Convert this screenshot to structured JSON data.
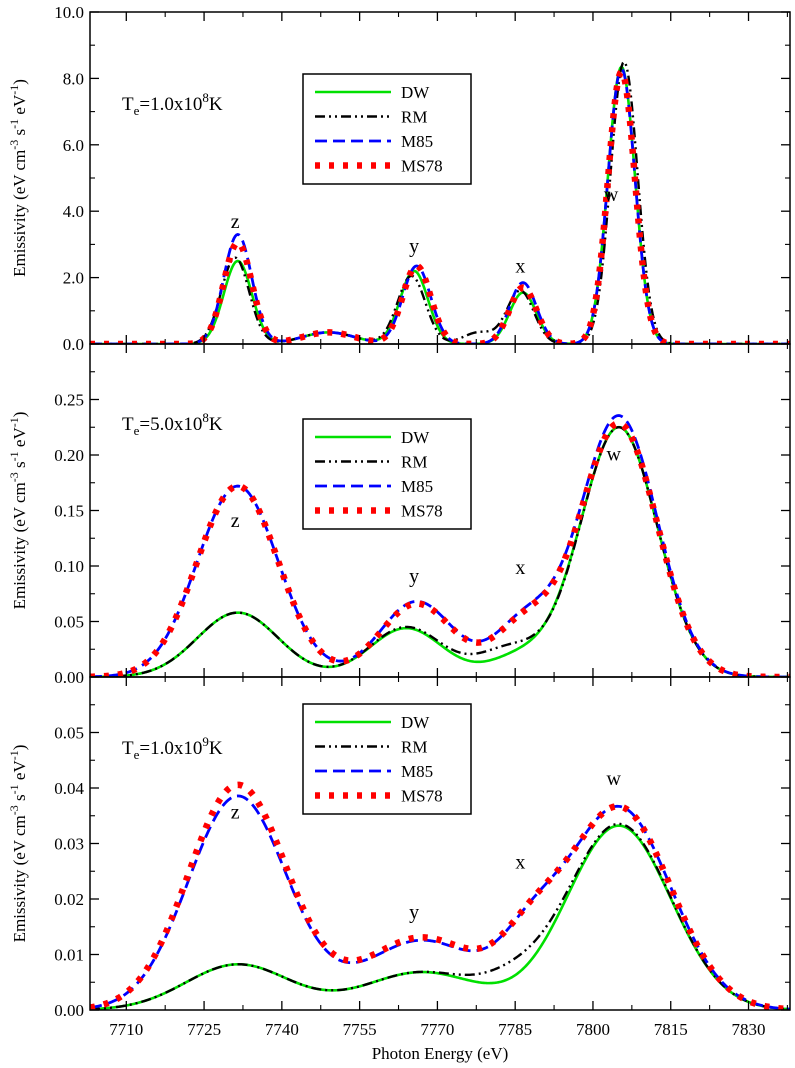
{
  "figure": {
    "xlabel": "Photon Energy (eV)",
    "x_tick_labels": [
      "7710",
      "7725",
      "7740",
      "7755",
      "7770",
      "7785",
      "7800",
      "7815",
      "7830"
    ],
    "ylabel": {
      "main": "Emissivity (eV cm",
      "sup1": "-3",
      "s": " s",
      "sup2": "-1",
      "ev": " eV",
      "sup3": "-1",
      "close": ")"
    },
    "legend_labels": [
      "DW",
      "RM",
      "M85",
      "MS78"
    ],
    "peak_names": [
      "z",
      "y",
      "x",
      "w"
    ]
  },
  "colors": {
    "DW": "#00e000",
    "RM": "#000000",
    "M85": "#0000ff",
    "MS78": "#ff0000"
  },
  "chart_data": [
    {
      "type": "line",
      "panel": "top",
      "temperature": {
        "prefix": "T",
        "sub": "e",
        "value": "=1.0x10",
        "exp": "8",
        "unit": "K"
      },
      "xlim": [
        7703,
        7838
      ],
      "ylim": [
        0,
        10
      ],
      "y_ticks": [
        0,
        2,
        4,
        6,
        8,
        10
      ],
      "y_tick_labels": [
        "0.0",
        "2.0",
        "4.0",
        "6.0",
        "8.0",
        "10.0"
      ],
      "peak_labels": [
        {
          "text": "z",
          "x": 7731,
          "y": 3.5
        },
        {
          "text": "y",
          "x": 7765.5,
          "y": 2.75
        },
        {
          "text": "x",
          "x": 7786,
          "y": 2.15
        },
        {
          "text": "w",
          "x": 7803.5,
          "y": 4.3
        }
      ],
      "series": [
        {
          "name": "DW",
          "peaks": [
            [
              7731.5,
              2.5,
              2.7
            ],
            [
              7765.5,
              2.2,
              2.7
            ],
            [
              7786.5,
              1.55,
              2.6
            ],
            [
              7805.5,
              8.35,
              2.6
            ],
            [
              7749,
              0.35,
              5.0
            ]
          ]
        },
        {
          "name": "RM",
          "peaks": [
            [
              7731.0,
              2.6,
              2.7
            ],
            [
              7765.0,
              2.05,
              2.7
            ],
            [
              7778.0,
              0.35,
              3.0
            ],
            [
              7786.0,
              1.6,
              2.6
            ],
            [
              7806.0,
              8.5,
              2.6
            ],
            [
              7749,
              0.35,
              5.0
            ]
          ]
        },
        {
          "name": "M85",
          "peaks": [
            [
              7731.5,
              3.3,
              2.7
            ],
            [
              7766.0,
              2.35,
              2.7
            ],
            [
              7786.5,
              1.85,
              2.6
            ],
            [
              7805.5,
              8.3,
              2.6
            ],
            [
              7749,
              0.35,
              5.0
            ]
          ]
        },
        {
          "name": "MS78",
          "peaks": [
            [
              7731.5,
              3.05,
              2.7
            ],
            [
              7766.0,
              2.35,
              2.7
            ],
            [
              7786.5,
              1.7,
              2.6
            ],
            [
              7805.5,
              8.2,
              2.6
            ],
            [
              7749,
              0.35,
              5.0
            ]
          ]
        }
      ]
    },
    {
      "type": "line",
      "panel": "middle",
      "temperature": {
        "prefix": "T",
        "sub": "e",
        "value": "=5.0x10",
        "exp": "8",
        "unit": "K"
      },
      "xlim": [
        7703,
        7838
      ],
      "ylim": [
        0,
        0.3
      ],
      "y_ticks": [
        0,
        0.05,
        0.1,
        0.15,
        0.2,
        0.25
      ],
      "y_tick_labels": [
        "0.00",
        "0.05",
        "0.10",
        "0.15",
        "0.20",
        "0.25"
      ],
      "peak_labels": [
        {
          "text": "z",
          "x": 7731,
          "y": 0.135
        },
        {
          "text": "y",
          "x": 7765.5,
          "y": 0.085
        },
        {
          "text": "x",
          "x": 7786,
          "y": 0.093
        },
        {
          "text": "w",
          "x": 7804,
          "y": 0.195
        }
      ],
      "series": [
        {
          "name": "DW",
          "peaks": [
            [
              7731.5,
              0.058,
              7.8
            ],
            [
              7764.0,
              0.044,
              7.0
            ],
            [
              7786.0,
              0.018,
              6.0
            ],
            [
              7805.0,
              0.225,
              7.4
            ]
          ]
        },
        {
          "name": "RM",
          "peaks": [
            [
              7731.5,
              0.058,
              7.8
            ],
            [
              7764.0,
              0.045,
              7.0
            ],
            [
              7784.0,
              0.025,
              6.0
            ],
            [
              7805.0,
              0.225,
              7.4
            ]
          ]
        },
        {
          "name": "M85",
          "peaks": [
            [
              7731.5,
              0.172,
              7.8
            ],
            [
              7766.0,
              0.068,
              7.0
            ],
            [
              7787.0,
              0.05,
              6.0
            ],
            [
              7805.0,
              0.235,
              7.4
            ]
          ]
        },
        {
          "name": "MS78",
          "peaks": [
            [
              7731.5,
              0.172,
              7.8
            ],
            [
              7766.0,
              0.066,
              7.0
            ],
            [
              7787.0,
              0.048,
              6.0
            ],
            [
              7805.0,
              0.228,
              7.4
            ]
          ]
        }
      ]
    },
    {
      "type": "line",
      "panel": "bottom",
      "temperature": {
        "prefix": "T",
        "sub": "e",
        "value": "=1.0x10",
        "exp": "9",
        "unit": "K"
      },
      "xlim": [
        7703,
        7838
      ],
      "ylim": [
        0,
        0.06
      ],
      "y_ticks": [
        0,
        0.01,
        0.02,
        0.03,
        0.04,
        0.05
      ],
      "y_tick_labels": [
        "0.00",
        "0.01",
        "0.02",
        "0.03",
        "0.04",
        "0.05"
      ],
      "peak_labels": [
        {
          "text": "z",
          "x": 7731,
          "y": 0.0345
        },
        {
          "text": "y",
          "x": 7765.5,
          "y": 0.0165
        },
        {
          "text": "x",
          "x": 7786,
          "y": 0.0255
        },
        {
          "text": "w",
          "x": 7804,
          "y": 0.0405
        }
      ],
      "series": [
        {
          "name": "DW",
          "peaks": [
            [
              7731.5,
              0.0082,
              10.0
            ],
            [
              7767.0,
              0.0068,
              11.0
            ],
            [
              7805.0,
              0.0332,
              10.0
            ]
          ]
        },
        {
          "name": "RM",
          "peaks": [
            [
              7731.5,
              0.0082,
              10.0
            ],
            [
              7767.0,
              0.0068,
              11.0
            ],
            [
              7785.0,
              0.003,
              6.0
            ],
            [
              7805.0,
              0.0335,
              10.0
            ]
          ]
        },
        {
          "name": "M85",
          "peaks": [
            [
              7731.5,
              0.0385,
              9.5
            ],
            [
              7767.0,
              0.0125,
              11.0
            ],
            [
              7788.0,
              0.009,
              6.0
            ],
            [
              7805.0,
              0.0365,
              10.0
            ]
          ]
        },
        {
          "name": "MS78",
          "peaks": [
            [
              7731.5,
              0.0405,
              9.5
            ],
            [
              7767.0,
              0.013,
              11.0
            ],
            [
              7788.0,
              0.009,
              6.0
            ],
            [
              7805.0,
              0.0365,
              10.0
            ]
          ]
        }
      ]
    }
  ]
}
